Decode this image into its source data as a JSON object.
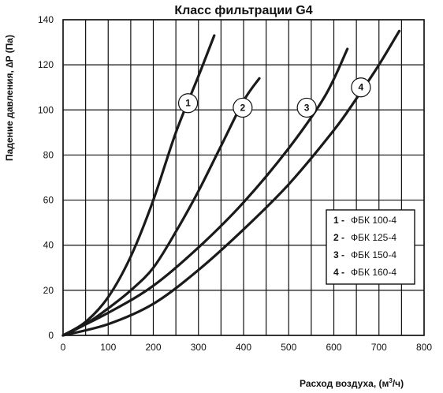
{
  "chart_data": {
    "type": "line",
    "title": "Класс фильтрации G4",
    "xlabel": "Расход воздуха, (м",
    "xlabel_sup": "3",
    "xlabel_tail": "/ч)",
    "ylabel": "Падение давления, ∆P (Па)",
    "xlim": [
      0,
      800
    ],
    "ylim": [
      0,
      140
    ],
    "x_ticks": [
      0,
      100,
      200,
      300,
      400,
      500,
      600,
      700,
      800
    ],
    "y_ticks": [
      0,
      20,
      40,
      60,
      80,
      100,
      120,
      140
    ],
    "x_minor_step": 50,
    "y_minor_step": 20,
    "grid": true,
    "legend_position": "right",
    "series": [
      {
        "name": "ФБК 100-4",
        "label": "1",
        "marker_at": [
          277,
          103
        ],
        "points": [
          [
            0,
            0
          ],
          [
            50,
            6
          ],
          [
            100,
            17
          ],
          [
            150,
            35
          ],
          [
            200,
            60
          ],
          [
            250,
            90
          ],
          [
            300,
            115
          ],
          [
            335,
            133
          ]
        ]
      },
      {
        "name": "ФБК 125-4",
        "label": "2",
        "marker_at": [
          398,
          101
        ],
        "points": [
          [
            0,
            0
          ],
          [
            50,
            5
          ],
          [
            100,
            12
          ],
          [
            150,
            20
          ],
          [
            200,
            30
          ],
          [
            250,
            46
          ],
          [
            300,
            64
          ],
          [
            350,
            84
          ],
          [
            400,
            104
          ],
          [
            435,
            114
          ]
        ]
      },
      {
        "name": "ФБК 150-4",
        "label": "3",
        "marker_at": [
          540,
          101
        ],
        "points": [
          [
            0,
            0
          ],
          [
            100,
            10
          ],
          [
            200,
            22
          ],
          [
            300,
            39
          ],
          [
            400,
            59
          ],
          [
            500,
            83
          ],
          [
            580,
            106
          ],
          [
            630,
            127
          ]
        ]
      },
      {
        "name": "ФБК 160-4",
        "label": "4",
        "marker_at": [
          660,
          110
        ],
        "points": [
          [
            0,
            0
          ],
          [
            100,
            5
          ],
          [
            200,
            14
          ],
          [
            300,
            29
          ],
          [
            400,
            47
          ],
          [
            500,
            67
          ],
          [
            600,
            91
          ],
          [
            650,
            105
          ],
          [
            700,
            120
          ],
          [
            745,
            135
          ]
        ]
      }
    ],
    "legend": [
      {
        "num": "1 -",
        "text": "ФБК 100-4"
      },
      {
        "num": "2 -",
        "text": "ФБК 125-4"
      },
      {
        "num": "3 -",
        "text": "ФБК 150-4"
      },
      {
        "num": "4 -",
        "text": "ФБК 160-4"
      }
    ]
  }
}
